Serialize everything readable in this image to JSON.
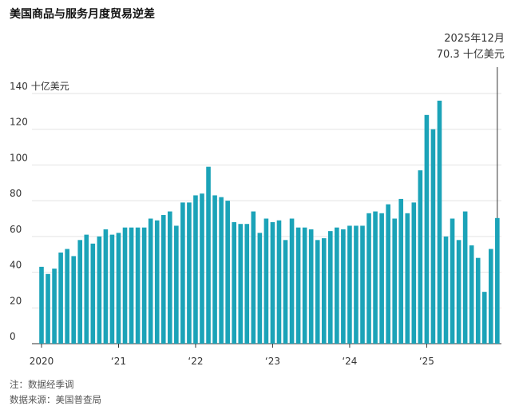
{
  "chart_data": {
    "type": "bar",
    "title": "美国商品与服务月度贸易逆差",
    "categories": [
      "2020",
      null,
      null,
      null,
      null,
      null,
      null,
      null,
      null,
      null,
      null,
      null,
      "‘21",
      null,
      null,
      null,
      null,
      null,
      null,
      null,
      null,
      null,
      null,
      null,
      "‘22",
      null,
      null,
      null,
      null,
      null,
      null,
      null,
      null,
      null,
      null,
      null,
      "‘23",
      null,
      null,
      null,
      null,
      null,
      null,
      null,
      null,
      null,
      null,
      null,
      "‘24",
      null,
      null,
      null,
      null,
      null,
      null,
      null,
      null,
      null,
      null,
      null,
      "‘25",
      null,
      null,
      null,
      null,
      null,
      null,
      null,
      null,
      null,
      null,
      null
    ],
    "values": [
      43,
      39,
      42,
      51,
      53,
      49,
      58,
      61,
      56,
      60,
      64,
      61,
      62,
      65,
      65,
      65,
      65,
      70,
      69,
      72,
      74,
      66,
      79,
      79,
      83,
      84,
      99,
      83,
      82,
      80,
      68,
      67,
      67,
      74,
      62,
      70,
      68,
      69,
      58,
      70,
      65,
      65,
      64,
      58,
      59,
      63,
      65,
      64,
      66,
      66,
      66,
      73,
      74,
      73,
      78,
      70,
      81,
      73,
      79,
      97,
      128,
      120,
      136,
      60,
      70,
      58,
      74,
      55,
      48,
      29,
      53,
      70.3
    ],
    "annotation": "2025年12月",
    "value_labels": [
      null,
      null,
      null,
      null,
      null,
      null,
      null,
      null,
      null,
      null,
      null,
      null,
      null,
      null,
      null,
      null,
      null,
      null,
      null,
      null,
      null,
      null,
      null,
      null,
      null,
      null,
      null,
      null,
      null,
      null,
      null,
      null,
      null,
      null,
      null,
      null,
      null,
      null,
      null,
      null,
      null,
      null,
      null,
      null,
      null,
      null,
      null,
      null,
      null,
      null,
      null,
      null,
      null,
      null,
      null,
      null,
      null,
      null,
      null,
      null,
      null,
      null,
      null,
      null,
      null,
      null,
      null,
      null,
      null,
      null,
      null,
      "70.3 十亿美元"
    ],
    "color": "#1ba3b8",
    "ylim": [
      0,
      140
    ],
    "yticks": [
      0,
      20,
      40,
      60,
      80,
      100,
      120,
      {
        "value": 140,
        "label": "140 十亿美元"
      }
    ],
    "grid": true,
    "notes": [
      "注：数据经季调",
      "数据来源：美国普查局"
    ]
  }
}
